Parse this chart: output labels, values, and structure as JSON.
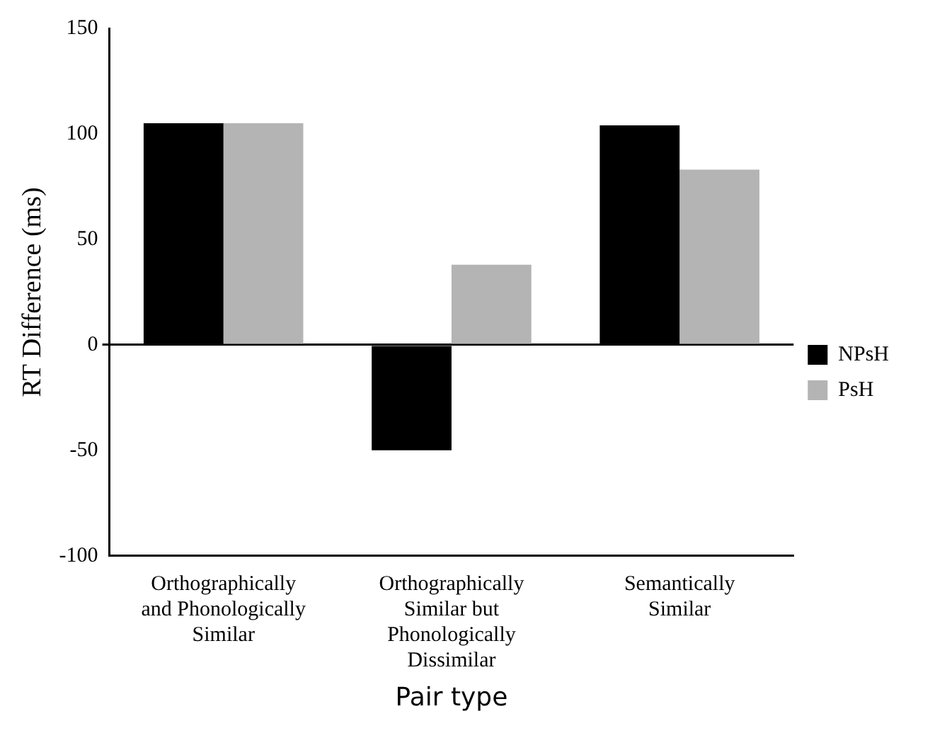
{
  "chart_data": {
    "type": "bar",
    "xlabel": "Pair type",
    "ylabel": "RT Difference (ms)",
    "categories": [
      "Orthographically and Phonologically Similar",
      "Orthographically Similar but Phonologically Dissimilar",
      "Semantically Similar"
    ],
    "series": [
      {
        "name": "NPsH",
        "color": "#000000",
        "values": [
          105,
          -50,
          104
        ]
      },
      {
        "name": "PsH",
        "color": "#b4b4b4",
        "values": [
          105,
          38,
          83
        ]
      }
    ],
    "ylim": [
      -100,
      150
    ],
    "yticks": [
      -100,
      -50,
      0,
      50,
      100,
      150
    ],
    "legend": "right"
  }
}
